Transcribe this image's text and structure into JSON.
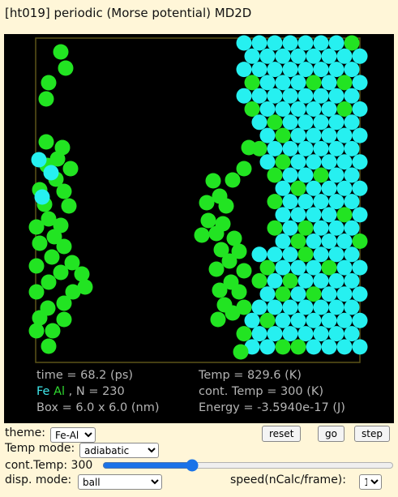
{
  "title": "[ht019] periodic (Morse potential) MD2D",
  "readout": {
    "time": "time = 68.2 (ps)",
    "temp": "Temp = 829.6 (K)",
    "species_fe": "Fe",
    "species_al": "Al",
    "species_sep": ",",
    "n": "N = 230",
    "cont_temp": "cont. Temp = 300 (K)",
    "box": "Box = 6.0 x 6.0 (nm)",
    "energy": "Energy = -3.5940e-17 (J)"
  },
  "controls": {
    "theme_label": "theme:",
    "theme_value": "Fe-Al",
    "reset_label": "reset",
    "go_label": "go",
    "step_label": "step",
    "temp_mode_label": "Temp mode:",
    "temp_mode_value": "adiabatic",
    "cont_temp_label": "cont.Temp: 300",
    "cont_temp_value": 300,
    "disp_mode_label": "disp. mode:",
    "disp_mode_value": "ball",
    "speed_label": "speed(nCalc/frame):",
    "speed_value": "1"
  },
  "colors": {
    "fe": "#26f0f0",
    "al": "#22e422",
    "sim_background": "#000000",
    "box_outline": "#5c5418",
    "page_background": "#fff6d8"
  }
}
